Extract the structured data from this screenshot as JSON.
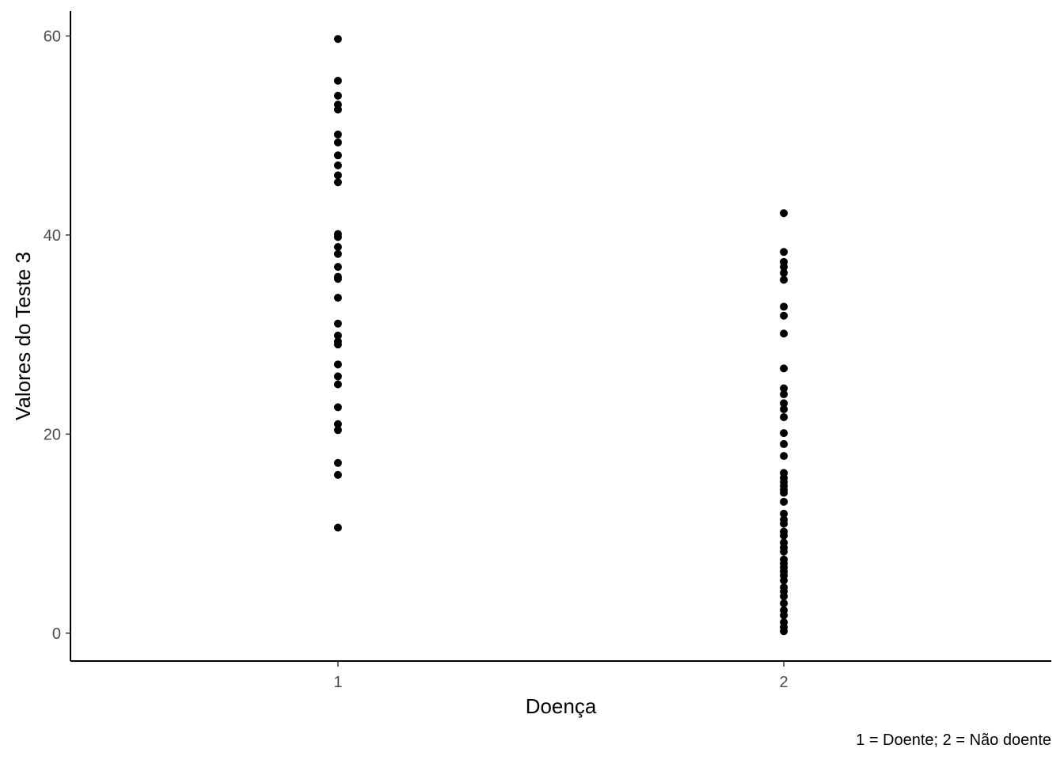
{
  "chart_data": {
    "type": "scatter",
    "xlabel": "Doença",
    "ylabel": "Valores do Teste 3",
    "caption": "1 = Doente; 2 = Não doente",
    "categories": [
      "1",
      "2"
    ],
    "ylim": [
      -2.8,
      62.5
    ],
    "yticks": [
      0,
      20,
      40,
      60
    ],
    "grid": false,
    "legend": "none",
    "colors": {
      "point": "#000000",
      "axis": "#000000",
      "tick_label": "#4d4d4d"
    },
    "series": [
      {
        "category": "1",
        "values": [
          59.7,
          55.5,
          54.0,
          53.1,
          52.6,
          50.1,
          49.3,
          48.0,
          47.0,
          46.0,
          45.3,
          40.1,
          39.8,
          38.8,
          38.1,
          36.8,
          35.8,
          35.6,
          33.7,
          31.1,
          29.9,
          29.3,
          29.0,
          27.0,
          25.8,
          25.0,
          22.7,
          21.0,
          20.4,
          17.1,
          15.9,
          10.6
        ]
      },
      {
        "category": "2",
        "values": [
          42.2,
          38.3,
          37.3,
          36.8,
          36.2,
          35.5,
          32.8,
          31.9,
          30.1,
          26.6,
          24.6,
          24.0,
          23.1,
          22.5,
          21.7,
          20.1,
          19.0,
          17.8,
          16.1,
          15.6,
          15.2,
          14.8,
          14.4,
          14.1,
          13.2,
          12.0,
          11.4,
          11.0,
          10.2,
          9.8,
          9.1,
          8.6,
          8.2,
          7.4,
          7.0,
          6.6,
          6.2,
          5.8,
          5.3,
          4.6,
          4.2,
          3.7,
          3.0,
          2.3,
          1.8,
          1.1,
          0.6,
          0.2
        ]
      }
    ]
  }
}
